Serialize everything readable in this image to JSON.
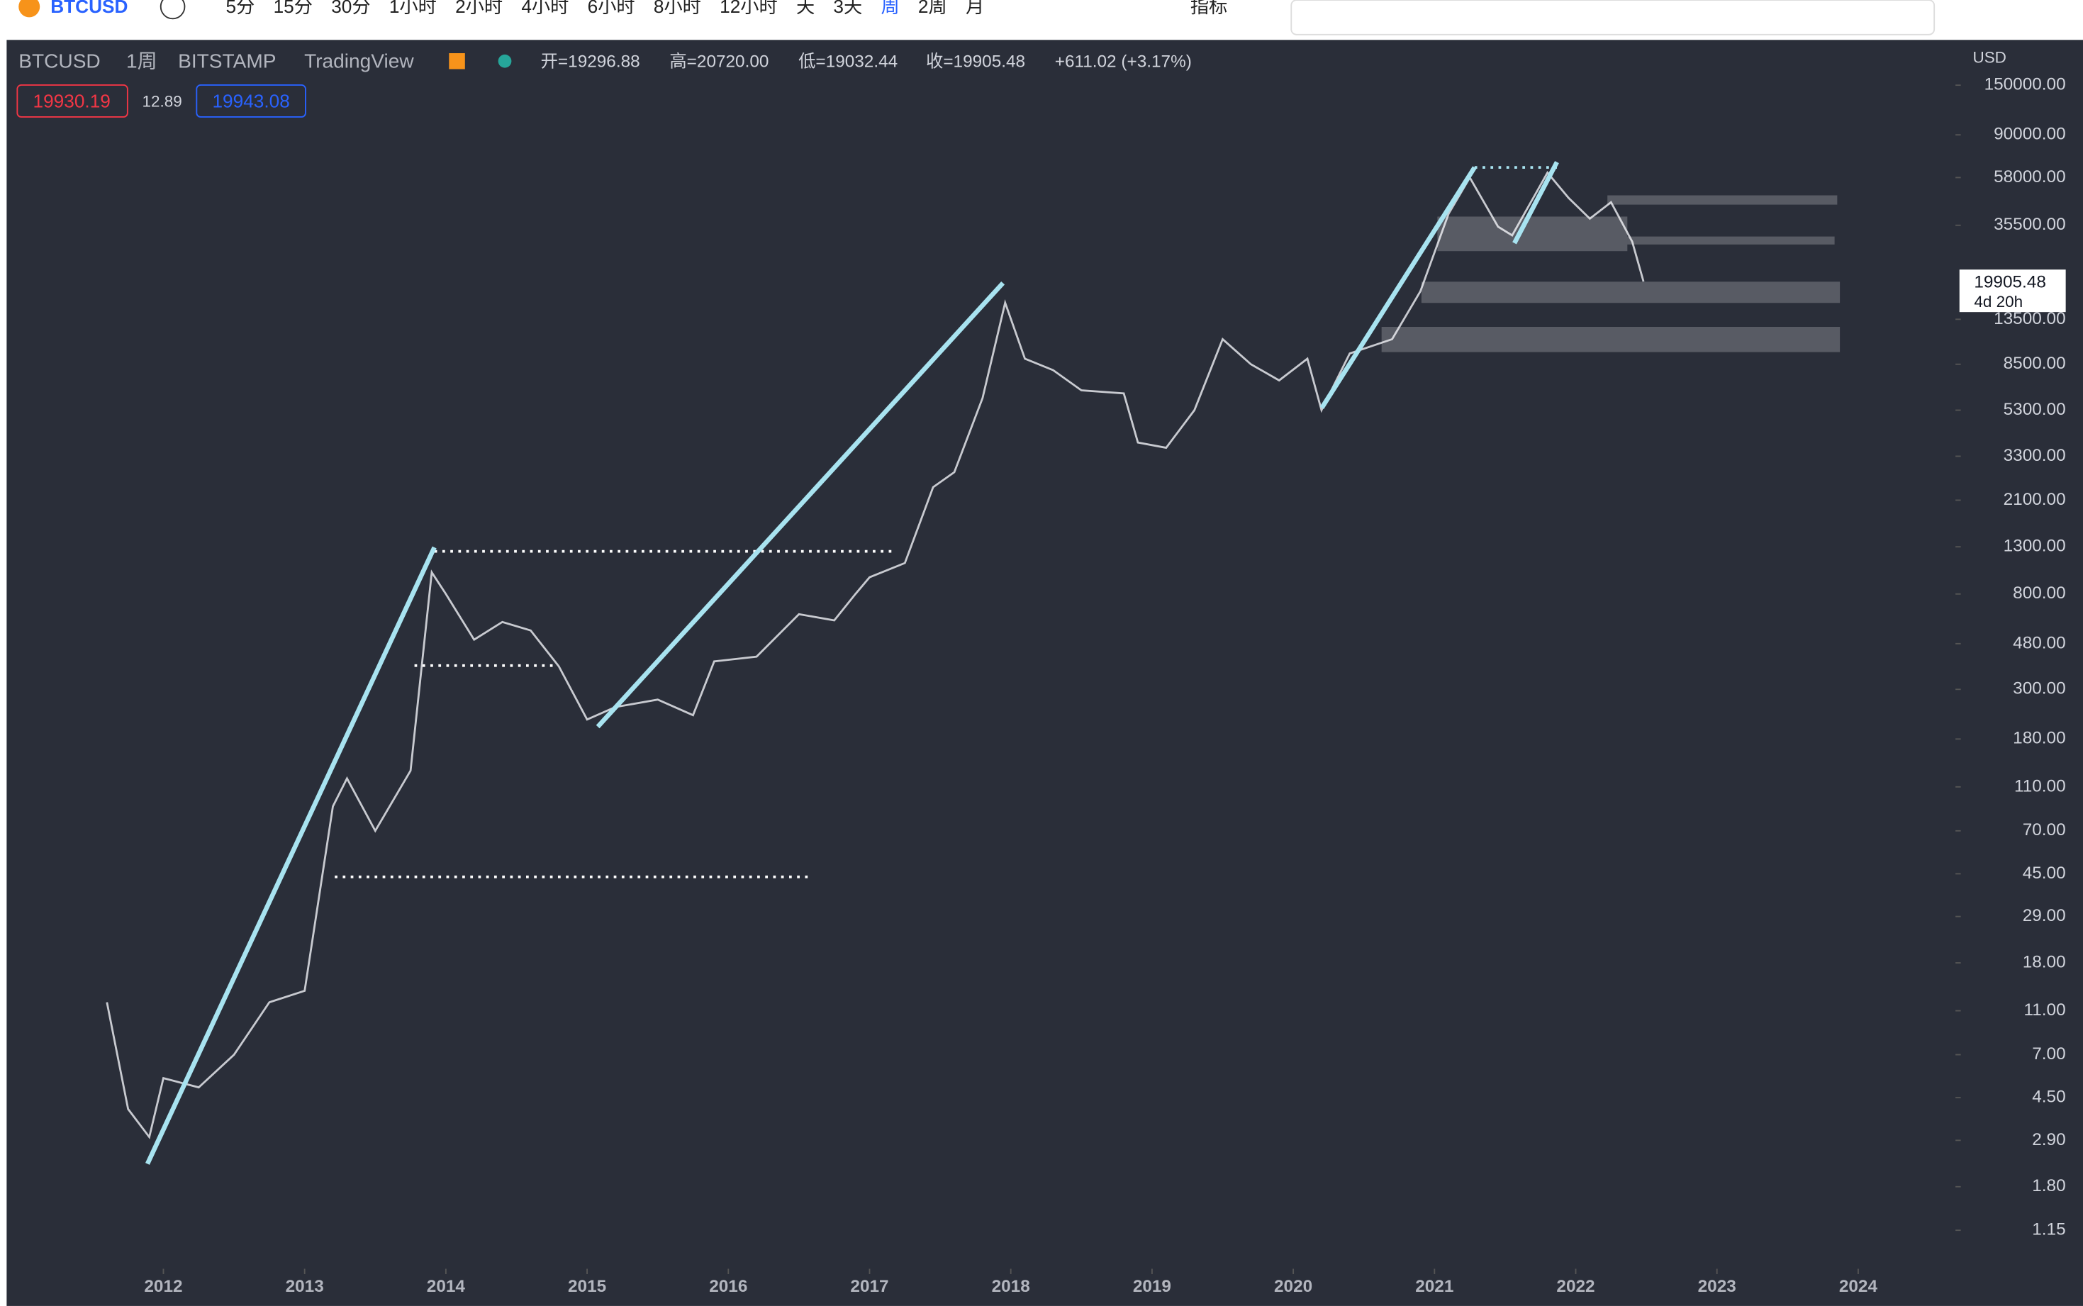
{
  "toolbar": {
    "intervals": [
      "5分",
      "15分",
      "30分",
      "1小时",
      "2小时",
      "4小时",
      "6小时",
      "8小时",
      "12小时",
      "天",
      "3天",
      "周",
      "2周",
      "月"
    ],
    "active_interval": 11,
    "indicators": "指标"
  },
  "legend": {
    "interval": "1周",
    "exchange": "BITSTAMP",
    "source": "TradingView",
    "open": "开=19296.88",
    "high": "高=20720.00",
    "low": "低=19032.44",
    "close": "收=19905.48",
    "change": "+611.02 (+3.17%)"
  },
  "quotes": {
    "bid": "19930.19",
    "spread": "12.89",
    "ask": "19943.08"
  },
  "chart_data": {
    "type": "line",
    "currency": "USD",
    "countdown": "4d 20h",
    "log_scale": true,
    "x": [
      2011.6,
      2011.75,
      2011.9,
      2012.0,
      2012.25,
      2012.5,
      2012.75,
      2013.0,
      2013.2,
      2013.3,
      2013.5,
      2013.75,
      2013.9,
      2014.0,
      2014.2,
      2014.4,
      2014.6,
      2014.8,
      2015.0,
      2015.2,
      2015.5,
      2015.75,
      2015.9,
      2016.2,
      2016.5,
      2016.75,
      2016.9,
      2017.0,
      2017.25,
      2017.45,
      2017.6,
      2017.8,
      2017.96,
      2018.1,
      2018.3,
      2018.5,
      2018.8,
      2018.9,
      2019.1,
      2019.3,
      2019.5,
      2019.7,
      2019.9,
      2020.1,
      2020.2,
      2020.4,
      2020.7,
      2020.9,
      2021.1,
      2021.25,
      2021.45,
      2021.55,
      2021.8,
      2021.95,
      2022.1,
      2022.25,
      2022.4,
      2022.48
    ],
    "series": [
      {
        "name": "BTCUSD",
        "color": "#c8cad0",
        "values": [
          12,
          4,
          3,
          5.5,
          5,
          7,
          12,
          13.5,
          90,
          120,
          70,
          130,
          1000,
          800,
          500,
          600,
          550,
          380,
          220,
          250,
          270,
          230,
          400,
          420,
          650,
          610,
          800,
          950,
          1100,
          2400,
          2800,
          6000,
          16000,
          9000,
          8000,
          6500,
          6300,
          3800,
          3600,
          5300,
          11000,
          8500,
          7200,
          9000,
          5300,
          9500,
          11000,
          18000,
          40000,
          58000,
          35000,
          32000,
          61000,
          47000,
          38000,
          45000,
          30000,
          19905.48
        ]
      }
    ],
    "xlim": [
      2010.89,
      2024.67
    ],
    "xticks": [
      2012,
      2013,
      2014,
      2015,
      2016,
      2017,
      2018,
      2019,
      2020,
      2021,
      2022,
      2023,
      2024
    ],
    "ylim": [
      0.774,
      239000
    ],
    "yticks": [
      {
        "value": 150000,
        "label": "150000.00"
      },
      {
        "value": 90000,
        "label": "90000.00"
      },
      {
        "value": 58000,
        "label": "58000.00"
      },
      {
        "value": 35500,
        "label": "35500.00"
      },
      {
        "value": 13500,
        "label": "13500.00"
      },
      {
        "value": 8500,
        "label": "8500.00"
      },
      {
        "value": 5300,
        "label": "5300.00"
      },
      {
        "value": 3300,
        "label": "3300.00"
      },
      {
        "value": 2100,
        "label": "2100.00"
      },
      {
        "value": 1300,
        "label": "1300.00"
      },
      {
        "value": 800,
        "label": "800.00"
      },
      {
        "value": 480,
        "label": "480.00"
      },
      {
        "value": 300,
        "label": "300.00"
      },
      {
        "value": 180,
        "label": "180.00"
      },
      {
        "value": 110,
        "label": "110.00"
      },
      {
        "value": 70,
        "label": "70.00"
      },
      {
        "value": 45,
        "label": "45.00"
      },
      {
        "value": 29,
        "label": "29.00"
      },
      {
        "value": 18,
        "label": "18.00"
      },
      {
        "value": 11,
        "label": "11.00"
      },
      {
        "value": 7,
        "label": "7.00"
      },
      {
        "value": 4.5,
        "label": "4.50"
      },
      {
        "value": 2.9,
        "label": "2.90"
      },
      {
        "value": 1.8,
        "label": "1.80"
      },
      {
        "value": 1.15,
        "label": "1.15"
      }
    ]
  }
}
